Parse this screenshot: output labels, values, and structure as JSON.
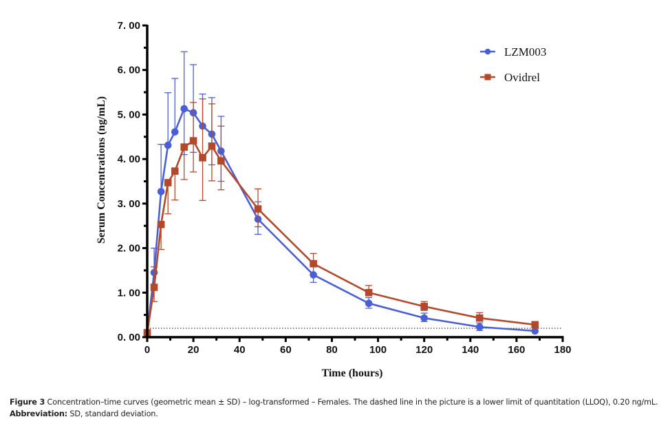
{
  "chart_data": {
    "type": "line",
    "title": "",
    "xlabel": "Time (hours)",
    "ylabel": "Serum Concentrations (ng/mL)",
    "xlim": [
      0,
      180
    ],
    "ylim": [
      0,
      7
    ],
    "x_ticks": [
      "0",
      "20",
      "40",
      "60",
      "80",
      "100",
      "120",
      "140",
      "160",
      "180"
    ],
    "x_tick_values": [
      0,
      20,
      40,
      60,
      80,
      100,
      120,
      140,
      160,
      180
    ],
    "y_ticks": [
      "0. 00",
      "1. 00",
      "2. 00",
      "3. 00",
      "4. 00",
      "5. 00",
      "6. 00",
      "7. 00"
    ],
    "y_tick_values": [
      0,
      1,
      2,
      3,
      4,
      5,
      6,
      7
    ],
    "grid": false,
    "legend_position": "top-right",
    "x": [
      0,
      3,
      6,
      9,
      12,
      16,
      20,
      24,
      28,
      32,
      48,
      72,
      96,
      120,
      144,
      168
    ],
    "series": [
      {
        "name": "LZM003",
        "color": "#4a5fd6",
        "marker": "circle",
        "values": [
          0.1,
          1.45,
          3.27,
          4.31,
          4.61,
          5.13,
          5.04,
          4.74,
          4.56,
          4.18,
          2.65,
          1.4,
          0.76,
          0.43,
          0.23,
          0.14
        ],
        "err_upper": [
          0.1,
          2.0,
          4.33,
          5.49,
          5.81,
          6.41,
          6.12,
          5.46,
          5.38,
          4.96,
          3.04,
          1.6,
          0.89,
          0.54,
          0.32,
          0.14
        ],
        "err_lower": [
          0.1,
          1.45,
          3.27,
          4.31,
          4.61,
          4.1,
          4.15,
          4.74,
          3.87,
          3.5,
          2.31,
          1.23,
          0.65,
          0.35,
          0.15,
          0.14
        ]
      },
      {
        "name": "Ovidrel",
        "color": "#b5482a",
        "marker": "square",
        "values": [
          0.1,
          1.12,
          2.53,
          3.47,
          3.73,
          4.27,
          4.41,
          4.03,
          4.29,
          3.96,
          2.88,
          1.65,
          1.0,
          0.69,
          0.43,
          0.28
        ],
        "err_upper": [
          0.1,
          1.58,
          2.53,
          3.47,
          3.73,
          4.27,
          5.27,
          5.35,
          5.24,
          4.74,
          3.33,
          1.88,
          1.16,
          0.8,
          0.55,
          0.28
        ],
        "err_lower": [
          0.1,
          0.8,
          1.97,
          2.77,
          3.08,
          3.54,
          3.71,
          3.07,
          3.51,
          3.31,
          2.48,
          1.65,
          1.0,
          0.6,
          0.43,
          0.28
        ]
      }
    ],
    "reference_line": {
      "label": "LLOQ",
      "value": 0.2,
      "style": "dotted"
    }
  },
  "caption": {
    "figure_label": "Figure 3",
    "figure_text": " Concentration–time curves (geometric mean ± SD) – log-transformed – Females. The dashed line in the picture is a lower limit of quantitation (LLOQ), 0.20 ng/mL.",
    "abbrev_label": "Abbreviation:",
    "abbrev_text": " SD, standard deviation."
  }
}
